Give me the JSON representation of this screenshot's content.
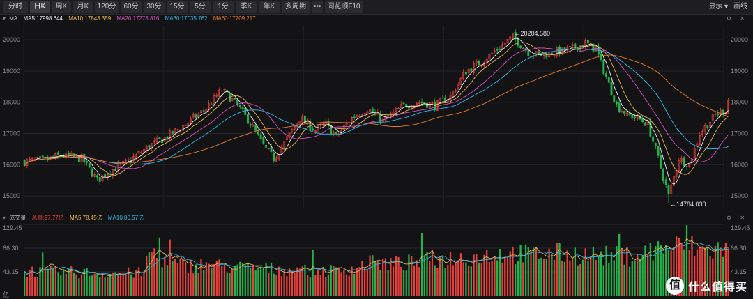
{
  "toolbar": {
    "tabs": [
      {
        "label": "分时",
        "active": false
      },
      {
        "label": "日K",
        "active": true
      },
      {
        "label": "周K",
        "active": false
      },
      {
        "label": "月K",
        "active": false
      },
      {
        "label": "120分",
        "active": false
      },
      {
        "label": "60分",
        "active": false
      },
      {
        "label": "30分",
        "active": false
      },
      {
        "label": "15分",
        "active": false
      },
      {
        "label": "5分",
        "active": false
      },
      {
        "label": "1分",
        "active": false
      },
      {
        "label": "季K",
        "active": false
      },
      {
        "label": "年K",
        "active": false
      },
      {
        "label": "多周期",
        "active": false
      },
      {
        "label": "•••",
        "active": false
      },
      {
        "label": "同花顺F10",
        "active": false
      }
    ],
    "display_label": "显示",
    "draw_label": "画线"
  },
  "ma_header": {
    "name": "MA",
    "ma5": "MA5:17998.644",
    "ma10": "MA10:17843.359",
    "ma20": "MA20:17273.816",
    "ma30": "MA30:17035.762",
    "ma60": "MA60:17709.217"
  },
  "vol_header": {
    "name": "成交量",
    "total": "总量:97.77亿",
    "ma5": "MA5:78.45亿",
    "ma10": "MA10:80.57亿"
  },
  "annotations": {
    "high": "20204.580",
    "low": "14784.030"
  },
  "watermark": {
    "logo": "值",
    "text": "什么值得买"
  },
  "colors": {
    "up": "#e8403b",
    "down": "#24b34a",
    "ma5": "#f2f2f2",
    "ma10": "#e8b84a",
    "ma20": "#d64fc0",
    "ma30": "#2fb8e8",
    "ma60": "#e87a2a"
  },
  "chart_data": [
    {
      "type": "candlestick",
      "y_ticks": [
        "20000",
        "19000",
        "18000",
        "17000",
        "16000",
        "15000"
      ],
      "ylim": [
        14600,
        20450
      ],
      "grid": true,
      "anchors": [
        [
          0,
          16100
        ],
        [
          8,
          16150
        ],
        [
          14,
          16300
        ],
        [
          22,
          16200
        ],
        [
          28,
          15500
        ],
        [
          33,
          15800
        ],
        [
          40,
          16100
        ],
        [
          48,
          16600
        ],
        [
          55,
          16900
        ],
        [
          62,
          17300
        ],
        [
          70,
          17800
        ],
        [
          76,
          18400
        ],
        [
          82,
          17900
        ],
        [
          88,
          17200
        ],
        [
          92,
          16600
        ],
        [
          96,
          16200
        ],
        [
          100,
          16700
        ],
        [
          106,
          17500
        ],
        [
          112,
          17100
        ],
        [
          116,
          17300
        ],
        [
          120,
          16900
        ],
        [
          126,
          17500
        ],
        [
          132,
          17800
        ],
        [
          138,
          17400
        ],
        [
          146,
          17900
        ],
        [
          152,
          18000
        ],
        [
          158,
          17900
        ],
        [
          164,
          18200
        ],
        [
          170,
          19000
        ],
        [
          176,
          19300
        ],
        [
          182,
          19700
        ],
        [
          188,
          20100
        ],
        [
          194,
          19600
        ],
        [
          198,
          19500
        ],
        [
          204,
          19600
        ],
        [
          210,
          19700
        ],
        [
          216,
          19900
        ],
        [
          220,
          19700
        ],
        [
          224,
          18800
        ],
        [
          228,
          17900
        ],
        [
          232,
          17600
        ],
        [
          236,
          17500
        ],
        [
          240,
          17300
        ],
        [
          244,
          16200
        ],
        [
          248,
          15000
        ],
        [
          252,
          16200
        ],
        [
          256,
          16000
        ],
        [
          260,
          17000
        ],
        [
          266,
          17600
        ],
        [
          271,
          17800
        ]
      ],
      "high": 20204.58,
      "low": 14784.03,
      "last_close": 18060
    },
    {
      "type": "bar",
      "title": "成交量",
      "y_ticks": [
        "129.45",
        "86.30",
        "43.15",
        "亿"
      ],
      "ylim": [
        0,
        129.45
      ],
      "grid": true,
      "volume_anchors": [
        [
          0,
          44
        ],
        [
          10,
          42
        ],
        [
          20,
          41
        ],
        [
          38,
          40
        ],
        [
          46,
          40
        ],
        [
          48,
          80
        ],
        [
          55,
          60
        ],
        [
          62,
          52
        ],
        [
          70,
          55
        ],
        [
          80,
          50
        ],
        [
          90,
          48
        ],
        [
          100,
          46
        ],
        [
          110,
          44
        ],
        [
          120,
          44
        ],
        [
          126,
          48
        ],
        [
          135,
          58
        ],
        [
          145,
          56
        ],
        [
          155,
          62
        ],
        [
          165,
          66
        ],
        [
          175,
          70
        ],
        [
          185,
          76
        ],
        [
          195,
          72
        ],
        [
          205,
          75
        ],
        [
          215,
          72
        ],
        [
          225,
          70
        ],
        [
          235,
          70
        ],
        [
          245,
          85
        ],
        [
          255,
          88
        ],
        [
          262,
          80
        ],
        [
          271,
          84
        ]
      ]
    }
  ]
}
